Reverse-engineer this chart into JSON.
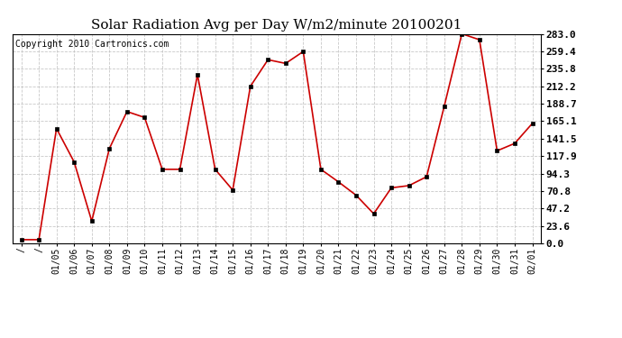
{
  "title": "Solar Radiation Avg per Day W/m2/minute 20100201",
  "copyright": "Copyright 2010 Cartronics.com",
  "x_labels": [
    "/",
    "/",
    "01/05",
    "01/06",
    "01/07",
    "01/08",
    "01/09",
    "01/10",
    "01/11",
    "01/12",
    "01/13",
    "01/14",
    "01/15",
    "01/16",
    "01/17",
    "01/18",
    "01/19",
    "01/20",
    "01/21",
    "01/22",
    "01/23",
    "01/24",
    "01/25",
    "01/26",
    "01/27",
    "01/28",
    "01/29",
    "01/30",
    "01/31",
    "02/01"
  ],
  "y_values": [
    5.0,
    5.0,
    155.0,
    110.0,
    30.0,
    128.0,
    178.0,
    170.0,
    100.0,
    100.0,
    228.0,
    100.0,
    72.0,
    212.0,
    248.0,
    243.0,
    259.0,
    100.0,
    83.0,
    65.0,
    40.0,
    75.0,
    78.0,
    90.0,
    185.0,
    283.0,
    275.0,
    125.0,
    135.0,
    162.0
  ],
  "line_color": "#cc0000",
  "marker": "s",
  "marker_size": 3,
  "background_color": "#ffffff",
  "grid_color": "#bbbbbb",
  "y_ticks": [
    0.0,
    23.6,
    47.2,
    70.8,
    94.3,
    117.9,
    141.5,
    165.1,
    188.7,
    212.2,
    235.8,
    259.4,
    283.0
  ],
  "ylim": [
    0.0,
    283.0
  ],
  "title_fontsize": 11,
  "copyright_fontsize": 7,
  "tick_fontsize": 7,
  "y_tick_fontsize": 8
}
